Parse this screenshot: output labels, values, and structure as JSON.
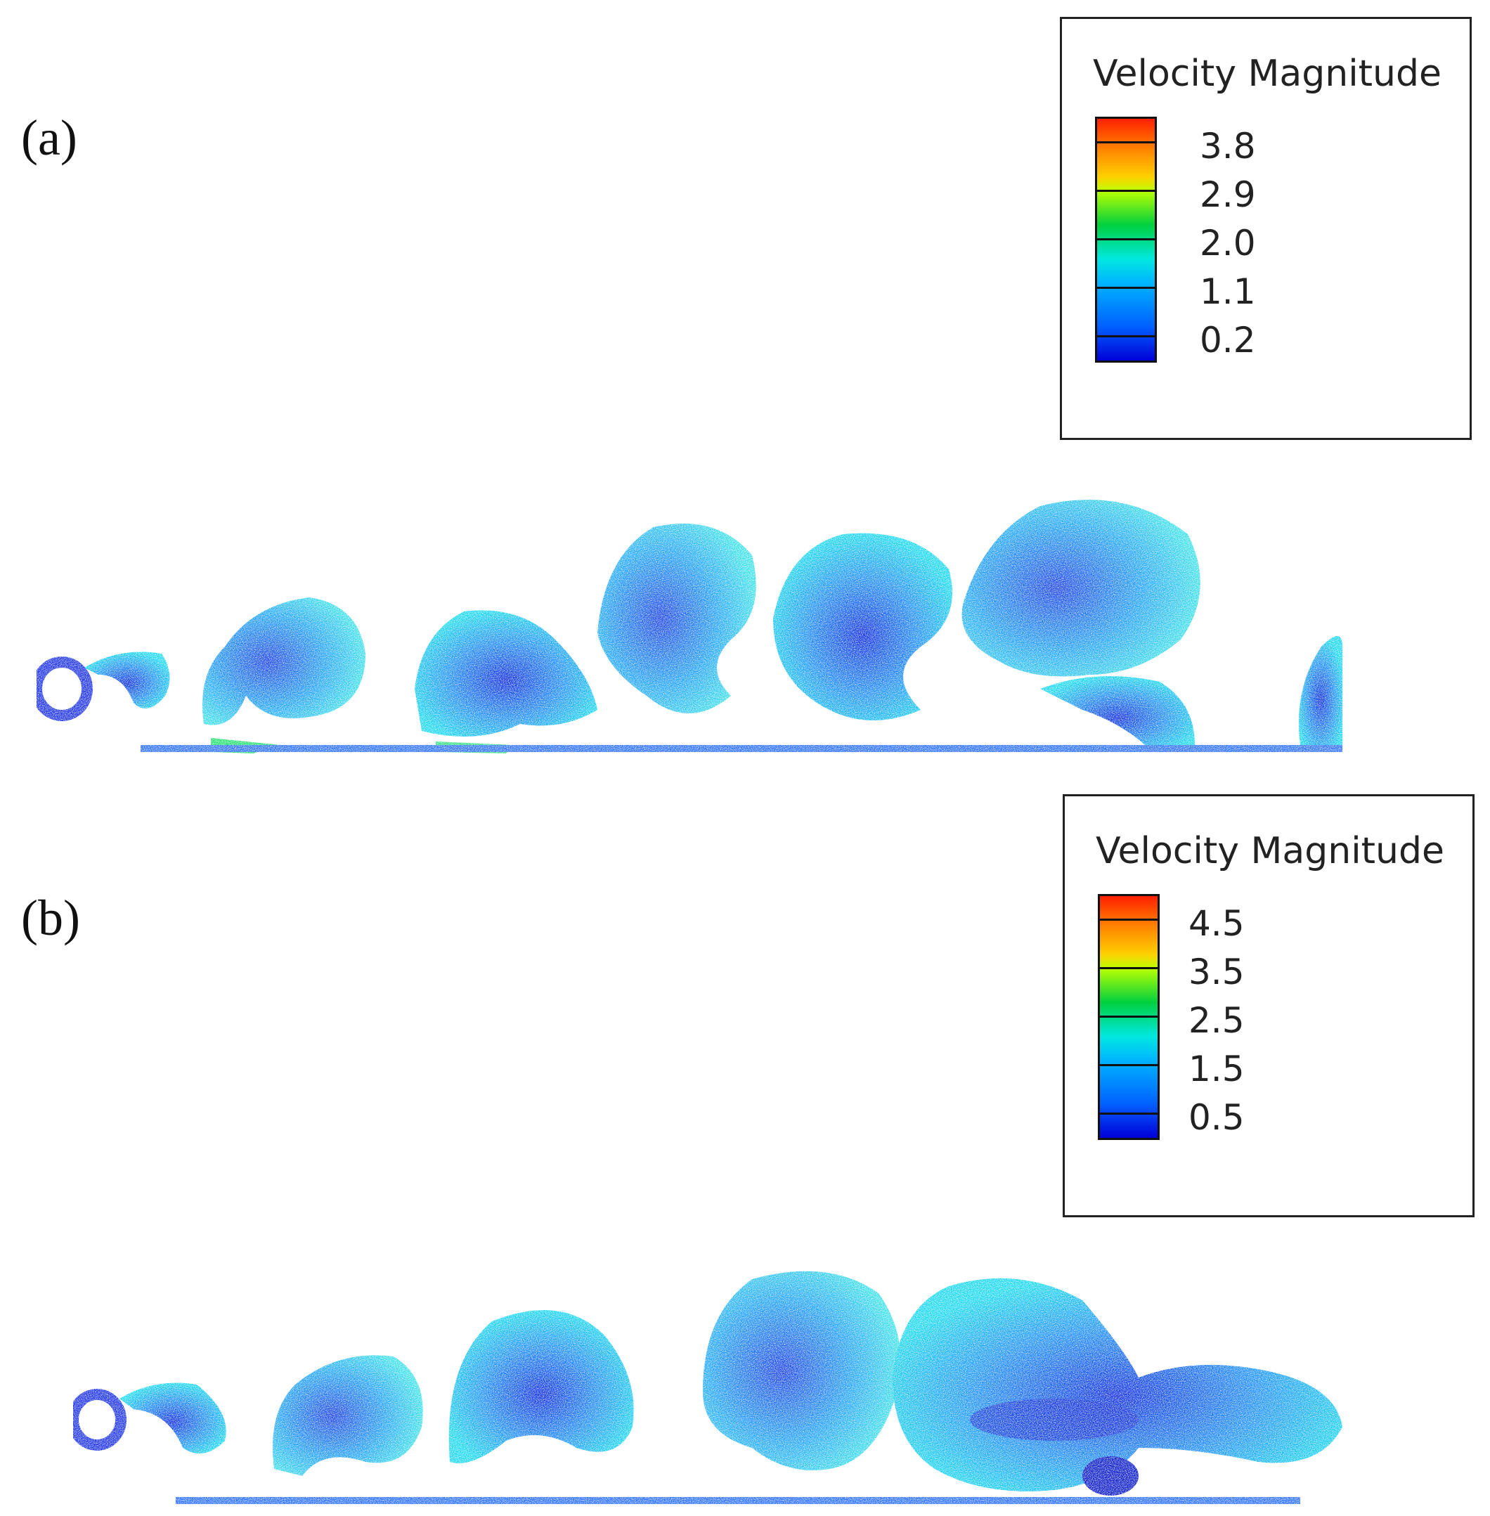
{
  "panels": [
    {
      "label": "(a)",
      "legend": {
        "title": "Velocity Magnitude",
        "ticks": [
          "3.8",
          "2.9",
          "2.0",
          "1.1",
          "0.2"
        ]
      }
    },
    {
      "label": "(b)",
      "legend": {
        "title": "Velocity Magnitude",
        "ticks": [
          "4.5",
          "3.5",
          "2.5",
          "1.5",
          "0.5"
        ]
      }
    }
  ],
  "colors": {
    "low": "#0000d8",
    "mid": "#00e8e0",
    "high": "#ff2000"
  }
}
